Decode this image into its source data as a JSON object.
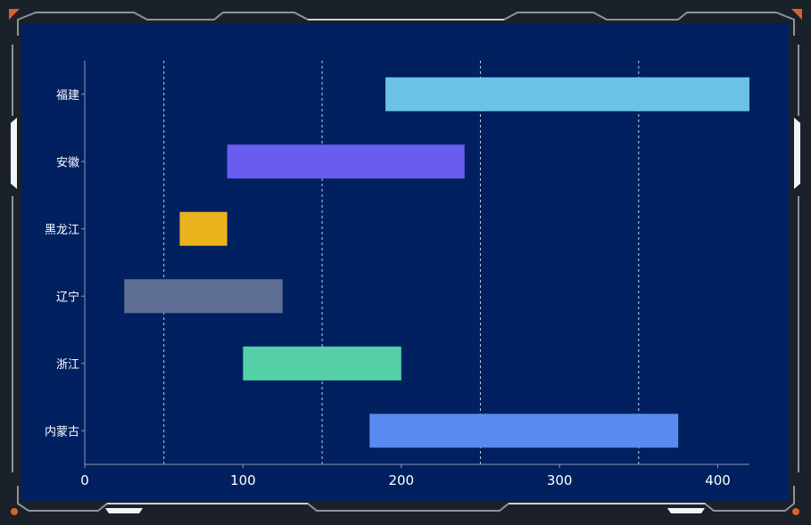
{
  "colors": {
    "page_bg": "#1b2129",
    "panel_bg": "#002060",
    "frame_line": "#9aa3ad",
    "frame_accent": "#e8eef5",
    "corner_dot": "#d9622b",
    "axis_line": "#8a9bb3",
    "grid_line": "#e6ecf5",
    "label_text": "#ffffff"
  },
  "chart_data": {
    "type": "bar",
    "orientation": "horizontal",
    "subtype": "floating-range",
    "categories": [
      "福建",
      "安徽",
      "黑龙江",
      "辽宁",
      "浙江",
      "内蒙古"
    ],
    "ranges": [
      {
        "category": "福建",
        "start": 190,
        "end": 420,
        "color": "#6bc2e8"
      },
      {
        "category": "安徽",
        "start": 90,
        "end": 240,
        "color": "#6b5cf0"
      },
      {
        "category": "黑龙江",
        "start": 60,
        "end": 90,
        "color": "#eab31b"
      },
      {
        "category": "辽宁",
        "start": 25,
        "end": 125,
        "color": "#5f6f95"
      },
      {
        "category": "浙江",
        "start": 100,
        "end": 200,
        "color": "#56d1a7"
      },
      {
        "category": "内蒙古",
        "start": 180,
        "end": 375,
        "color": "#5a8af0"
      }
    ],
    "xlim": [
      0,
      420
    ],
    "x_ticks": [
      0,
      100,
      200,
      300,
      400
    ],
    "grid_lines_x": [
      50,
      150,
      250,
      350
    ],
    "grid": true,
    "grid_style": "dashed-vertical",
    "legend": "none"
  }
}
